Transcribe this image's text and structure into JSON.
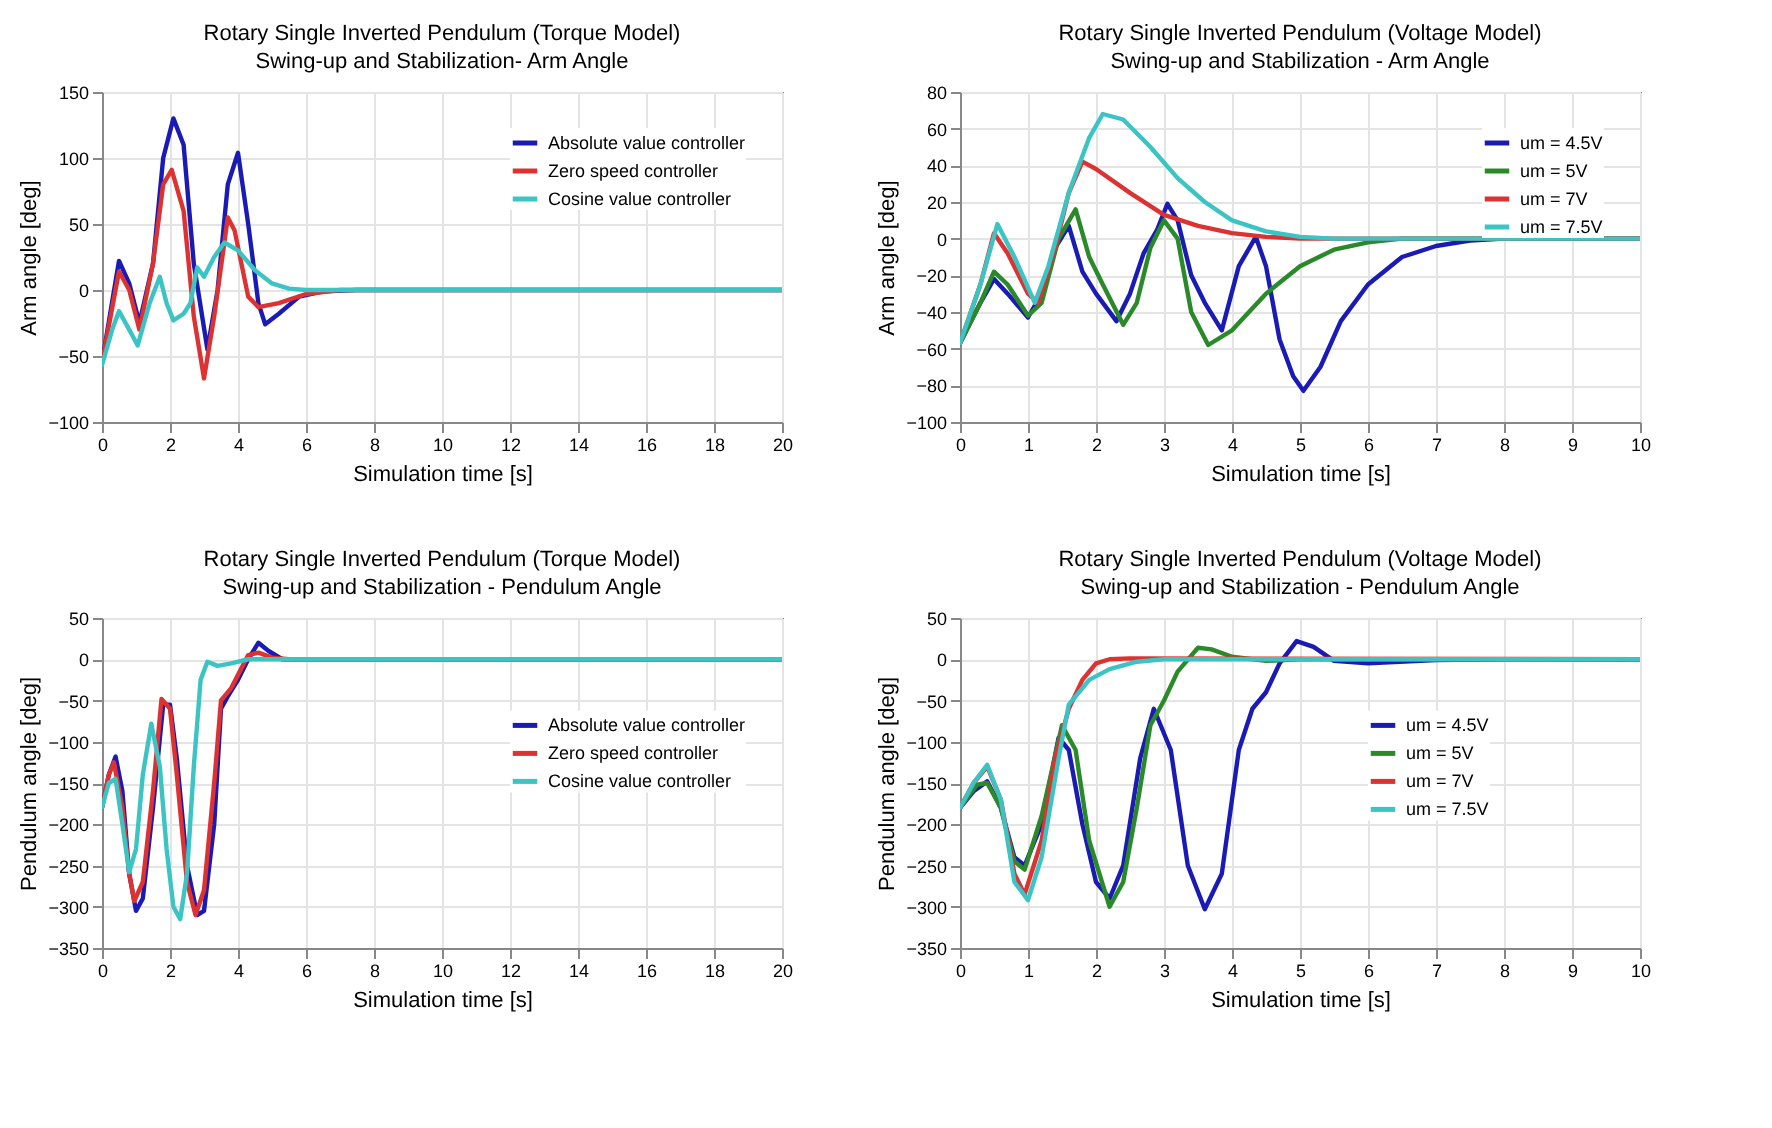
{
  "chart_data": [
    {
      "type": "line",
      "title": "Rotary Single Inverted Pendulum (Torque Model)",
      "subtitle": "Swing-up and Stabilization- Arm Angle",
      "xlabel": "Simulation time [s]",
      "ylabel": "Arm angle [deg]",
      "xlim": [
        0,
        20
      ],
      "xticks": [
        0,
        2,
        4,
        6,
        8,
        10,
        12,
        14,
        16,
        18,
        20
      ],
      "ylim": [
        -100,
        150
      ],
      "yticks": [
        -100,
        -50,
        0,
        50,
        100,
        150
      ],
      "grid": true,
      "legend": "top right",
      "series": [
        {
          "name": "Absolute value controller",
          "color": "#1a1ab4",
          "x": [
            0,
            0.5,
            0.8,
            1.1,
            1.5,
            1.8,
            2.1,
            2.4,
            2.7,
            3.1,
            3.4,
            3.7,
            4,
            4.3,
            4.6,
            4.8,
            5.2,
            5.8,
            6.5,
            7.5,
            20
          ],
          "values": [
            -55,
            22,
            5,
            -25,
            20,
            100,
            130,
            110,
            20,
            -45,
            0,
            80,
            104,
            50,
            -10,
            -26,
            -18,
            -5,
            -1,
            0,
            0
          ]
        },
        {
          "name": "Zero speed controller",
          "color": "#dc3232",
          "x": [
            0,
            0.5,
            0.8,
            1.1,
            1.5,
            1.8,
            2.05,
            2.4,
            2.7,
            3,
            3.3,
            3.7,
            3.9,
            4.3,
            4.6,
            5.2,
            6,
            7,
            20
          ],
          "values": [
            -55,
            14,
            0,
            -30,
            20,
            80,
            91,
            60,
            -20,
            -67,
            -20,
            55,
            45,
            -5,
            -13,
            -10,
            -3,
            0,
            0
          ]
        },
        {
          "name": "Cosine value controller",
          "color": "#3cc3c3",
          "x": [
            0,
            0.3,
            0.5,
            0.8,
            1.05,
            1.4,
            1.7,
            1.9,
            2.1,
            2.4,
            2.6,
            2.8,
            3,
            3.3,
            3.6,
            4,
            4.5,
            5,
            5.5,
            6,
            20
          ],
          "values": [
            -57,
            -30,
            -16,
            -30,
            -42,
            -10,
            10,
            -10,
            -23,
            -18,
            -10,
            17,
            10,
            25,
            36,
            30,
            15,
            5,
            1,
            0,
            0
          ]
        }
      ]
    },
    {
      "type": "line",
      "title": "Rotary Single Inverted Pendulum (Voltage Model)",
      "subtitle": "Swing-up and Stabilization - Arm Angle",
      "xlabel": "Simulation time [s]",
      "ylabel": "Arm angle [deg]",
      "xlim": [
        0,
        10
      ],
      "xticks": [
        0,
        1,
        2,
        3,
        4,
        5,
        6,
        7,
        8,
        9,
        10
      ],
      "ylim": [
        -100,
        80
      ],
      "yticks": [
        -100,
        -80,
        -60,
        -40,
        -20,
        0,
        20,
        40,
        60,
        80
      ],
      "grid": true,
      "legend": "top right",
      "series": [
        {
          "name": "um = 4.5V",
          "color": "#1a1ab4",
          "x": [
            0,
            0.3,
            0.5,
            0.7,
            1,
            1.2,
            1.4,
            1.6,
            1.8,
            2,
            2.3,
            2.5,
            2.7,
            2.9,
            3.05,
            3.2,
            3.4,
            3.6,
            3.85,
            4.1,
            4.35,
            4.5,
            4.7,
            4.9,
            5.05,
            5.3,
            5.6,
            6,
            6.5,
            7,
            7.5,
            8,
            10
          ],
          "values": [
            -57,
            -35,
            -22,
            -30,
            -43,
            -30,
            -5,
            7,
            -18,
            -30,
            -45,
            -30,
            -8,
            5,
            19,
            10,
            -20,
            -35,
            -50,
            -15,
            1,
            -15,
            -55,
            -75,
            -83,
            -70,
            -45,
            -25,
            -10,
            -4,
            -1,
            0,
            0
          ]
        },
        {
          "name": "um = 5V",
          "color": "#2a8a2a",
          "x": [
            0,
            0.3,
            0.5,
            0.7,
            1,
            1.2,
            1.45,
            1.7,
            1.9,
            2.1,
            2.4,
            2.6,
            2.8,
            3,
            3.2,
            3.4,
            3.65,
            4,
            4.5,
            5,
            5.5,
            6,
            6.5,
            10
          ],
          "values": [
            -57,
            -35,
            -18,
            -25,
            -42,
            -35,
            0,
            16,
            -10,
            -25,
            -47,
            -35,
            -5,
            10,
            0,
            -40,
            -58,
            -50,
            -30,
            -15,
            -6,
            -2,
            0,
            0
          ]
        },
        {
          "name": "um = 7V",
          "color": "#dc3232",
          "x": [
            0,
            0.3,
            0.5,
            0.7,
            1,
            1.15,
            1.4,
            1.6,
            1.8,
            2,
            2.5,
            3,
            3.5,
            4,
            4.5,
            5,
            10
          ],
          "values": [
            -57,
            -25,
            3,
            -8,
            -30,
            -35,
            -5,
            25,
            42,
            38,
            25,
            13,
            7,
            3,
            1,
            0,
            0
          ]
        },
        {
          "name": "um = 7.5V",
          "color": "#3cc3c3",
          "x": [
            0,
            0.3,
            0.55,
            0.8,
            1.1,
            1.3,
            1.6,
            1.9,
            2.1,
            2.4,
            2.8,
            3.2,
            3.6,
            4,
            4.5,
            5,
            5.5,
            10
          ],
          "values": [
            -57,
            -25,
            8,
            -10,
            -35,
            -15,
            25,
            55,
            68,
            65,
            50,
            33,
            20,
            10,
            4,
            1,
            0,
            0
          ]
        }
      ]
    },
    {
      "type": "line",
      "title": "Rotary Single Inverted Pendulum (Torque Model)",
      "subtitle": "Swing-up and Stabilization - Pendulum Angle",
      "xlabel": "Simulation time [s]",
      "ylabel": "Pendulum angle [deg]",
      "xlim": [
        0,
        20
      ],
      "xticks": [
        0,
        2,
        4,
        6,
        8,
        10,
        12,
        14,
        16,
        18,
        20
      ],
      "ylim": [
        -350,
        50
      ],
      "yticks": [
        -350,
        -300,
        -250,
        -200,
        -150,
        -100,
        -50,
        0,
        50
      ],
      "grid": true,
      "legend": "right",
      "series": [
        {
          "name": "Absolute value controller",
          "color": "#1a1ab4",
          "x": [
            0,
            0.2,
            0.4,
            0.6,
            0.8,
            1,
            1.2,
            1.5,
            1.8,
            2,
            2.2,
            2.5,
            2.8,
            3,
            3.3,
            3.5,
            3.7,
            4,
            4.3,
            4.6,
            4.9,
            5.3,
            20
          ],
          "values": [
            -180,
            -140,
            -118,
            -160,
            -260,
            -305,
            -290,
            -180,
            -55,
            -55,
            -120,
            -250,
            -310,
            -305,
            -200,
            -60,
            -45,
            -25,
            0,
            20,
            10,
            0,
            0
          ]
        },
        {
          "name": "Zero speed controller",
          "color": "#dc3232",
          "x": [
            0,
            0.2,
            0.35,
            0.6,
            0.8,
            0.95,
            1.2,
            1.5,
            1.75,
            2,
            2.2,
            2.5,
            2.75,
            3,
            3.3,
            3.5,
            3.8,
            4.3,
            4.6,
            5,
            5.5,
            20
          ],
          "values": [
            -180,
            -140,
            -125,
            -180,
            -260,
            -293,
            -270,
            -160,
            -48,
            -60,
            -140,
            -270,
            -310,
            -280,
            -150,
            -50,
            -35,
            5,
            8,
            2,
            0,
            0
          ]
        },
        {
          "name": "Cosine value controller",
          "color": "#3cc3c3",
          "x": [
            0,
            0.2,
            0.4,
            0.6,
            0.8,
            1,
            1.2,
            1.45,
            1.7,
            1.9,
            2.1,
            2.3,
            2.5,
            2.7,
            2.9,
            3.1,
            3.4,
            3.8,
            4.3,
            20
          ],
          "values": [
            -180,
            -150,
            -145,
            -200,
            -258,
            -230,
            -140,
            -78,
            -130,
            -230,
            -300,
            -315,
            -260,
            -130,
            -25,
            -3,
            -8,
            -5,
            0,
            0
          ]
        }
      ]
    },
    {
      "type": "line",
      "title": "Rotary Single Inverted Pendulum (Voltage Model)",
      "subtitle": "Swing-up and Stabilization - Pendulum Angle",
      "xlabel": "Simulation time [s]",
      "ylabel": "Pendulum angle [deg]",
      "xlim": [
        0,
        10
      ],
      "xticks": [
        0,
        1,
        2,
        3,
        4,
        5,
        6,
        7,
        8,
        9,
        10
      ],
      "ylim": [
        -350,
        50
      ],
      "yticks": [
        -350,
        -300,
        -250,
        -200,
        -150,
        -100,
        -50,
        0,
        50
      ],
      "grid": true,
      "legend": "right",
      "series": [
        {
          "name": "um = 4.5V",
          "color": "#1a1ab4",
          "x": [
            0,
            0.2,
            0.4,
            0.6,
            0.8,
            0.95,
            1.2,
            1.45,
            1.6,
            1.8,
            2,
            2.2,
            2.4,
            2.65,
            2.85,
            3.1,
            3.35,
            3.6,
            3.85,
            4.1,
            4.3,
            4.5,
            4.7,
            4.95,
            5.2,
            5.5,
            6,
            7,
            8,
            10
          ],
          "values": [
            -180,
            -160,
            -148,
            -180,
            -240,
            -250,
            -200,
            -95,
            -110,
            -200,
            -270,
            -290,
            -250,
            -120,
            -60,
            -110,
            -250,
            -303,
            -260,
            -110,
            -60,
            -40,
            -5,
            22,
            15,
            -2,
            -5,
            -1,
            0,
            0
          ]
        },
        {
          "name": "um = 5V",
          "color": "#2a8a2a",
          "x": [
            0,
            0.25,
            0.4,
            0.6,
            0.8,
            0.95,
            1.2,
            1.5,
            1.7,
            1.9,
            2.2,
            2.4,
            2.6,
            2.8,
            3,
            3.2,
            3.5,
            3.7,
            4,
            4.5,
            5,
            10
          ],
          "values": [
            -180,
            -152,
            -150,
            -180,
            -245,
            -255,
            -190,
            -80,
            -110,
            -220,
            -300,
            -270,
            -180,
            -80,
            -50,
            -15,
            14,
            12,
            3,
            -2,
            0,
            0
          ]
        },
        {
          "name": "um = 7V",
          "color": "#dc3232",
          "x": [
            0,
            0.2,
            0.4,
            0.6,
            0.8,
            0.95,
            1.2,
            1.4,
            1.6,
            1.8,
            2,
            2.2,
            2.5,
            10
          ],
          "values": [
            -180,
            -150,
            -130,
            -170,
            -260,
            -285,
            -220,
            -120,
            -60,
            -25,
            -5,
            0,
            1,
            0
          ]
        },
        {
          "name": "um = 7.5V",
          "color": "#3cc3c3",
          "x": [
            0,
            0.2,
            0.4,
            0.6,
            0.8,
            1,
            1.2,
            1.45,
            1.6,
            1.9,
            2.2,
            2.6,
            3,
            10
          ],
          "values": [
            -180,
            -150,
            -128,
            -170,
            -270,
            -292,
            -240,
            -120,
            -55,
            -25,
            -12,
            -3,
            0,
            0
          ]
        }
      ]
    }
  ]
}
